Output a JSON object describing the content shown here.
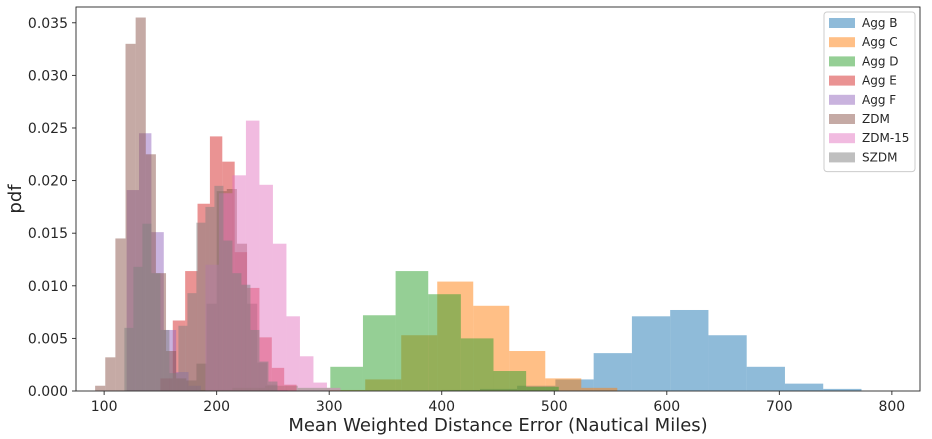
{
  "chart_data": {
    "type": "histogram",
    "title": "",
    "xlabel": "Mean Weighted Distance Error (Nautical Miles)",
    "ylabel": "pdf",
    "xlim": [
      75,
      825
    ],
    "ylim": [
      0,
      0.0365
    ],
    "xticks": [
      100,
      200,
      300,
      400,
      500,
      600,
      700,
      800
    ],
    "yticks": [
      0.0,
      0.005,
      0.01,
      0.015,
      0.02,
      0.025,
      0.03,
      0.035
    ],
    "ytick_labels": [
      "0.000",
      "0.005",
      "0.010",
      "0.015",
      "0.020",
      "0.025",
      "0.030",
      "0.035"
    ],
    "grid": false,
    "legend_position": "top-right",
    "series": [
      {
        "name": "Agg B",
        "color": "#1f77b4",
        "edges": [
          400,
          434,
          467,
          501,
          535,
          569,
          603,
          637,
          671,
          705,
          739,
          773
        ],
        "values": [
          0.0001,
          0.0002,
          0.0005,
          0.0011,
          0.0036,
          0.0071,
          0.0077,
          0.0053,
          0.0023,
          0.0007,
          0.0002
        ]
      },
      {
        "name": "Agg C",
        "color": "#ff7f0e",
        "edges": [
          300,
          332,
          364,
          396,
          428,
          460,
          492,
          524,
          556
        ],
        "values": [
          0.0001,
          0.0011,
          0.0053,
          0.0104,
          0.0081,
          0.0038,
          0.0012,
          0.0003
        ]
      },
      {
        "name": "Agg D",
        "color": "#2ca02c",
        "edges": [
          185,
          214,
          243,
          272,
          301,
          330,
          359,
          388,
          417,
          446,
          475,
          504
        ],
        "values": [
          0.0001,
          0.0003,
          0.0005,
          0.0003,
          0.0023,
          0.0072,
          0.0114,
          0.0092,
          0.005,
          0.0019,
          0.0004
        ]
      },
      {
        "name": "Agg E",
        "color": "#d62728",
        "edges": [
          150,
          161,
          172,
          183,
          194,
          205,
          216,
          227,
          238,
          249,
          260,
          271
        ],
        "values": [
          0.0012,
          0.0067,
          0.0114,
          0.0178,
          0.0242,
          0.0218,
          0.0132,
          0.0098,
          0.0051,
          0.0022,
          0.0006
        ]
      },
      {
        "name": "Agg F",
        "color": "#9467bd",
        "edges": [
          120,
          131,
          142,
          153,
          164,
          175,
          186
        ],
        "values": [
          0.0191,
          0.0245,
          0.0151,
          0.0058,
          0.0018,
          0.0005
        ]
      },
      {
        "name": "ZDM",
        "color": "#8c564b",
        "edges": [
          92,
          101,
          110,
          119,
          128,
          137,
          146,
          155,
          164,
          173,
          182,
          191,
          200,
          209,
          218,
          227,
          236,
          245,
          254,
          263
        ],
        "values": [
          0.0005,
          0.0032,
          0.0145,
          0.033,
          0.0355,
          0.0225,
          0.0112,
          0.0038,
          0.0012,
          0.001,
          0.0026,
          0.0083,
          0.019,
          0.0192,
          0.014,
          0.0083,
          0.0027,
          0.0006,
          0.0001
        ]
      },
      {
        "name": "ZDM-15",
        "color": "#e377c2",
        "edges": [
          190,
          202,
          214,
          226,
          238,
          250,
          262,
          274,
          286,
          298,
          310
        ],
        "values": [
          0.012,
          0.0188,
          0.0205,
          0.0257,
          0.0196,
          0.014,
          0.0071,
          0.0033,
          0.0008,
          0.0003
        ]
      },
      {
        "name": "SZDM",
        "color": "#7f7f7f",
        "edges": [
          118,
          126,
          134,
          142,
          150,
          158,
          166,
          174,
          182,
          190,
          198,
          206,
          214,
          222,
          230,
          238,
          246,
          254
        ],
        "values": [
          0.006,
          0.0118,
          0.0159,
          0.0112,
          0.0058,
          0.0017,
          0.0062,
          0.0093,
          0.016,
          0.0175,
          0.0195,
          0.0143,
          0.0112,
          0.0101,
          0.0058,
          0.0028,
          0.0009
        ]
      }
    ]
  }
}
